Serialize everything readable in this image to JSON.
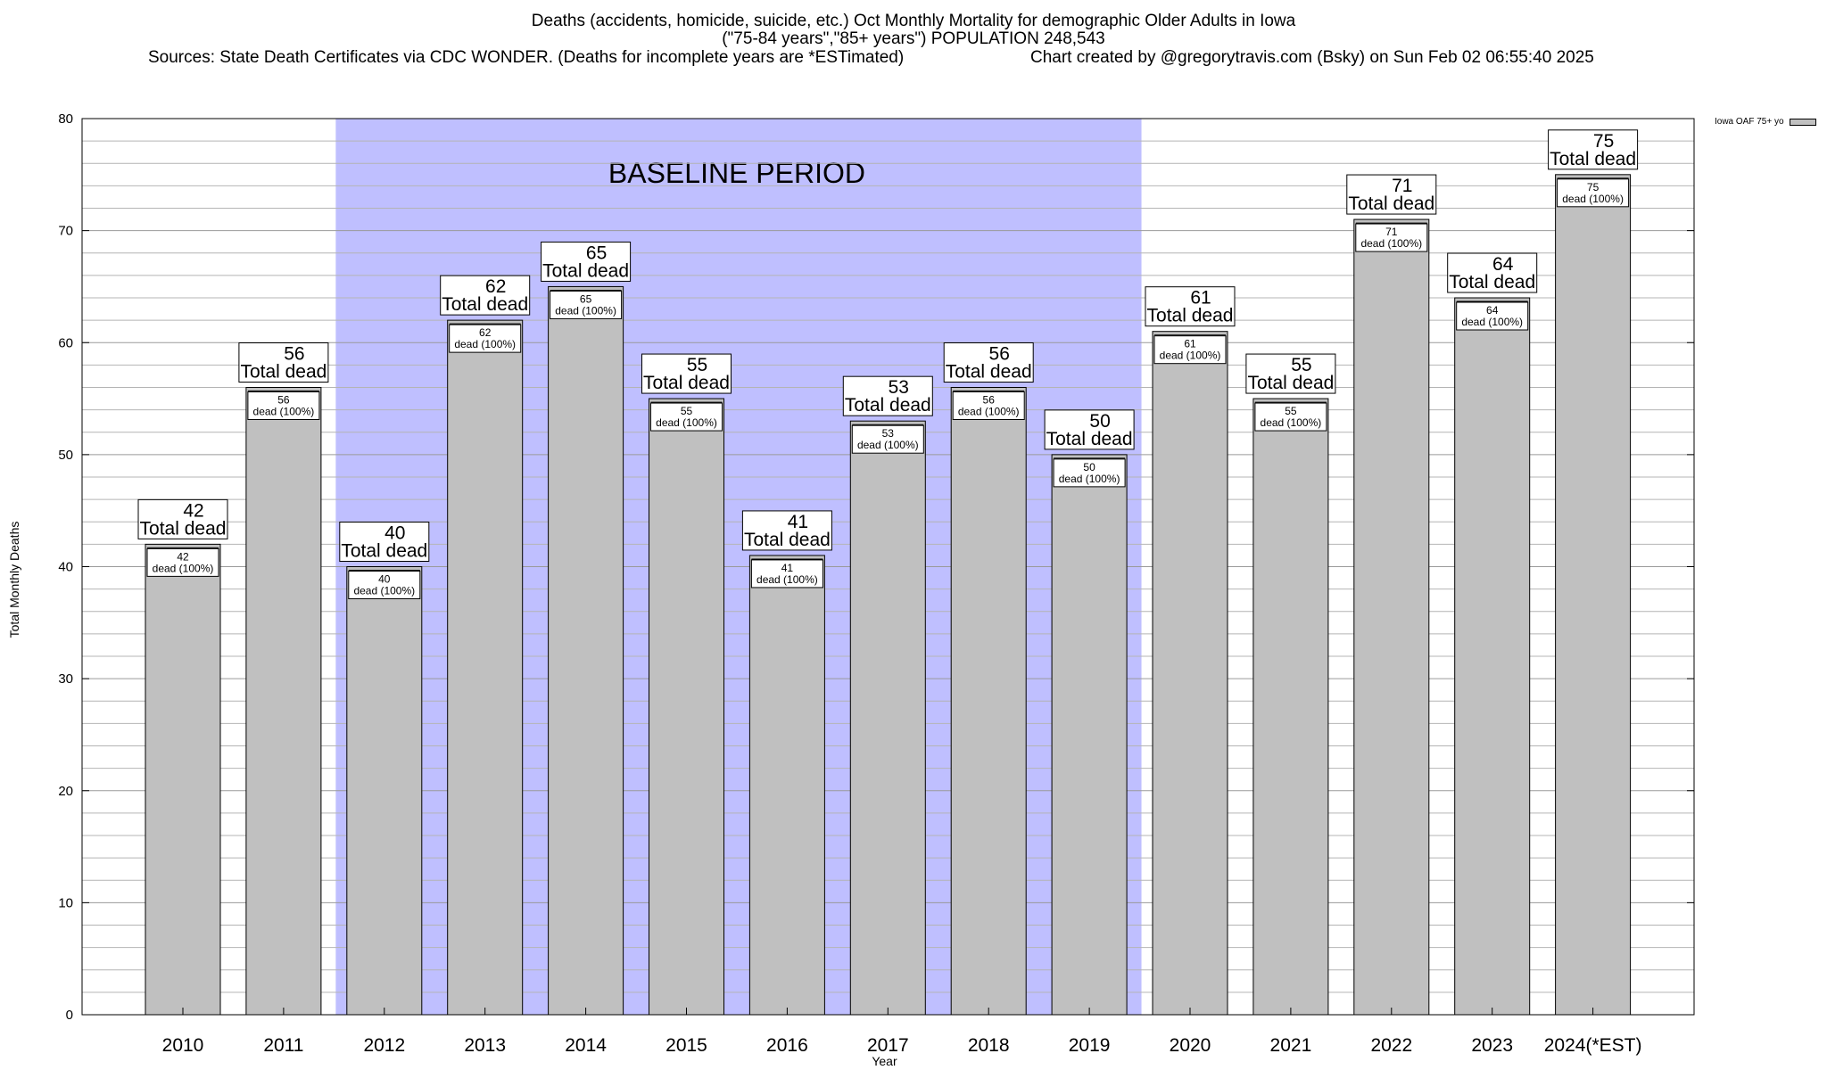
{
  "colors": {
    "bar_fill": "#c0c0c0",
    "baseline_fill": "#bfbfff",
    "axis": "#000000",
    "grid": "#b4b4b4",
    "background": "#ffffff"
  },
  "header": {
    "title_line1": "Deaths (accidents, homicide, suicide, etc.) Oct Monthly Mortality for demographic Older Adults in Iowa",
    "title_line2": "(\"75-84 years\",\"85+ years\") POPULATION 248,543",
    "sources": "Sources: State Death Certificates via CDC WONDER. (Deaths for incomplete years are *ESTimated)",
    "credit": "Chart created by @gregorytravis.com (Bsky) on Sun Feb 02 06:55:40 2025"
  },
  "chart_data": {
    "type": "bar",
    "title": "Deaths (accidents, homicide, suicide, etc.) Oct Monthly Mortality for demographic Older Adults in Iowa",
    "xlabel": "Year",
    "ylabel": "Total Monthly Deaths",
    "ylim": [
      0,
      80
    ],
    "yticks": [
      0,
      10,
      20,
      30,
      40,
      50,
      60,
      70,
      80
    ],
    "grid": true,
    "legend_position": "top-right",
    "categories": [
      "2010",
      "2011",
      "2012",
      "2013",
      "2014",
      "2015",
      "2016",
      "2017",
      "2018",
      "2019",
      "2020",
      "2021",
      "2022",
      "2023",
      "2024(*EST)"
    ],
    "series": [
      {
        "name": "Iowa OAF 75+ yo",
        "values": [
          42,
          56,
          40,
          62,
          65,
          55,
          41,
          53,
          56,
          50,
          61,
          55,
          71,
          64,
          75
        ]
      }
    ],
    "data_labels": {
      "total_suffix": "Total dead",
      "inner_suffix": "dead (100%)"
    },
    "shaded_region": {
      "label": "BASELINE PERIOD",
      "from": "2012",
      "to": "2019"
    }
  }
}
